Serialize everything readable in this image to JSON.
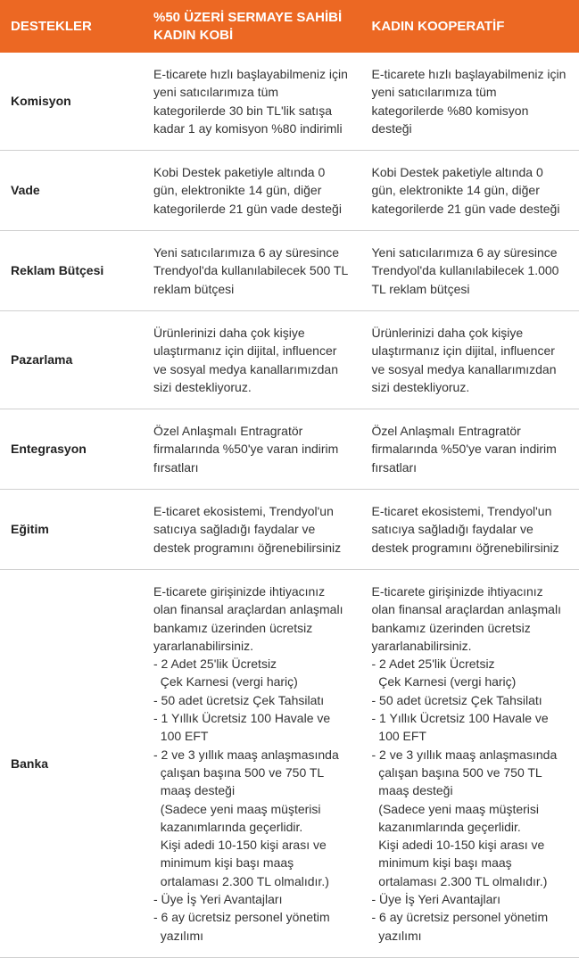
{
  "table": {
    "header_bg": "#ec6823",
    "header_color": "#ffffff",
    "border_color": "#d0d0d0",
    "text_color": "#333333",
    "font_size": 14,
    "header_font_size": 15,
    "columns": [
      "DESTEKLER",
      "%50 ÜZERİ SERMAYE SAHİBİ KADIN KOBİ",
      "KADIN KOOPERATİF"
    ],
    "rows": [
      {
        "label": "Komisyon",
        "col1": "E-ticarete hızlı başlayabilmeniz için yeni satıcılarımıza tüm kategorilerde 30 bin TL'lik satışa kadar 1 ay komisyon %80 indirimli",
        "col2": "E-ticarete hızlı başlayabilmeniz için yeni satıcılarımıza tüm kategorilerde %80 komisyon desteği"
      },
      {
        "label": "Vade",
        "col1": "Kobi Destek paketiyle altında 0 gün, elektronikte 14 gün, diğer kategorilerde 21 gün vade desteği",
        "col2": "Kobi Destek paketiyle altında 0 gün, elektronikte 14 gün, diğer kategorilerde 21 gün vade desteği"
      },
      {
        "label": "Reklam Bütçesi",
        "col1": "Yeni satıcılarımıza 6 ay süresince Trendyol'da kullanılabilecek 500 TL reklam bütçesi",
        "col2": "Yeni satıcılarımıza 6 ay süresince Trendyol'da kullanılabilecek 1.000 TL reklam bütçesi"
      },
      {
        "label": "Pazarlama",
        "col1": "Ürünlerinizi daha çok kişiye ulaştırmanız için dijital, influencer ve sosyal medya kanallarımızdan sizi destekliyoruz.",
        "col2": "Ürünlerinizi daha çok kişiye ulaştırmanız için dijital, influencer ve sosyal medya kanallarımızdan sizi destekliyoruz."
      },
      {
        "label": "Entegrasyon",
        "col1": "Özel Anlaşmalı Entragratör firmalarında %50'ye varan indirim fırsatları",
        "col2": "Özel Anlaşmalı Entragratör firmalarında %50'ye varan indirim fırsatları"
      },
      {
        "label": "Eğitim",
        "col1": "E-ticaret ekosistemi, Trendyol'un satıcıya sağladığı faydalar ve destek programını öğrenebilirsiniz",
        "col2": "E-ticaret ekosistemi, Trendyol'un satıcıya sağladığı faydalar ve destek programını öğrenebilirsiniz"
      },
      {
        "label": "Banka",
        "col1_lines": [
          "E-ticarete girişinizde ihtiyacınız olan finansal araçlardan anlaşmalı bankamız üzerinden ücretsiz yararlanabilirsiniz.",
          "- 2 Adet 25'lik Ücretsiz",
          "  Çek Karnesi (vergi hariç)",
          "- 50 adet ücretsiz Çek Tahsilatı",
          "- 1 Yıllık Ücretsiz 100 Havale ve",
          "  100  EFT",
          "- 2 ve 3 yıllık maaş anlaşmasında",
          "  çalışan başına 500 ve 750 TL",
          "  maaş desteği",
          "  (Sadece yeni maaş müşterisi",
          "  kazanımlarında geçerlidir.",
          "  Kişi adedi 10-150 kişi arası ve",
          "  minimum kişi başı maaş",
          "  ortalaması 2.300 TL olmalıdır.)",
          "- Üye İş Yeri Avantajları",
          "- 6 ay ücretsiz personel yönetim",
          "  yazılımı"
        ],
        "col2_lines": [
          "E-ticarete girişinizde ihtiyacınız olan finansal araçlardan anlaşmalı bankamız üzerinden ücretsiz yararlanabilirsiniz.",
          "- 2 Adet 25'lik Ücretsiz",
          "  Çek Karnesi (vergi hariç)",
          "- 50 adet ücretsiz Çek Tahsilatı",
          "- 1 Yıllık Ücretsiz 100 Havale ve",
          "  100  EFT",
          "- 2 ve 3 yıllık maaş anlaşmasında",
          "  çalışan başına 500 ve 750 TL",
          "  maaş desteği",
          "  (Sadece yeni maaş müşterisi",
          "  kazanımlarında geçerlidir.",
          "  Kişi adedi 10-150 kişi arası ve",
          "  minimum kişi başı maaş",
          "  ortalaması 2.300 TL olmalıdır.)",
          "- Üye İş Yeri Avantajları",
          "- 6 ay ücretsiz personel yönetim",
          "  yazılımı"
        ]
      }
    ]
  }
}
